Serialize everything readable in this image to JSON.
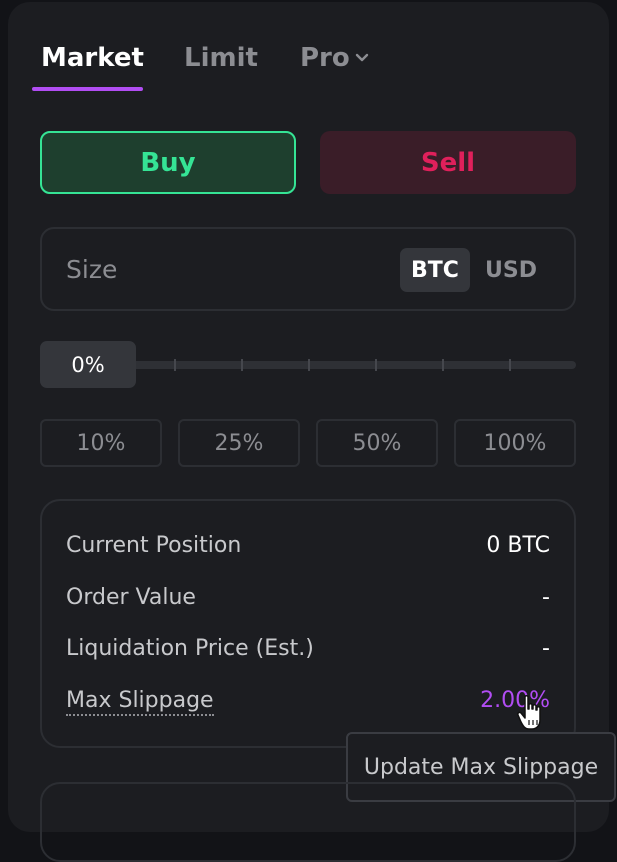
{
  "tabs": {
    "market": "Market",
    "limit": "Limit",
    "pro": "Pro"
  },
  "side": {
    "buy": "Buy",
    "sell": "Sell"
  },
  "size": {
    "label": "Size",
    "units": [
      "BTC",
      "USD"
    ],
    "selected_unit": "BTC"
  },
  "slider": {
    "value_label": "0%",
    "value": 0
  },
  "percent_buttons": [
    "10%",
    "25%",
    "50%",
    "100%"
  ],
  "info": {
    "current_position_label": "Current Position",
    "current_position_value": "0 BTC",
    "order_value_label": "Order Value",
    "order_value_value": "-",
    "liquidation_label": "Liquidation Price (Est.)",
    "liquidation_value": "-",
    "max_slippage_label": "Max Slippage",
    "max_slippage_value": "2.00%"
  },
  "tooltip": {
    "text": "Update Max Slippage"
  },
  "colors": {
    "accent": "#b14df3",
    "buy": "#35e495",
    "sell": "#e0205b",
    "panel": "#1c1d21"
  },
  "icons": {
    "pro_dropdown": "chevron-down-icon",
    "cursor": "hand-pointer-icon"
  }
}
